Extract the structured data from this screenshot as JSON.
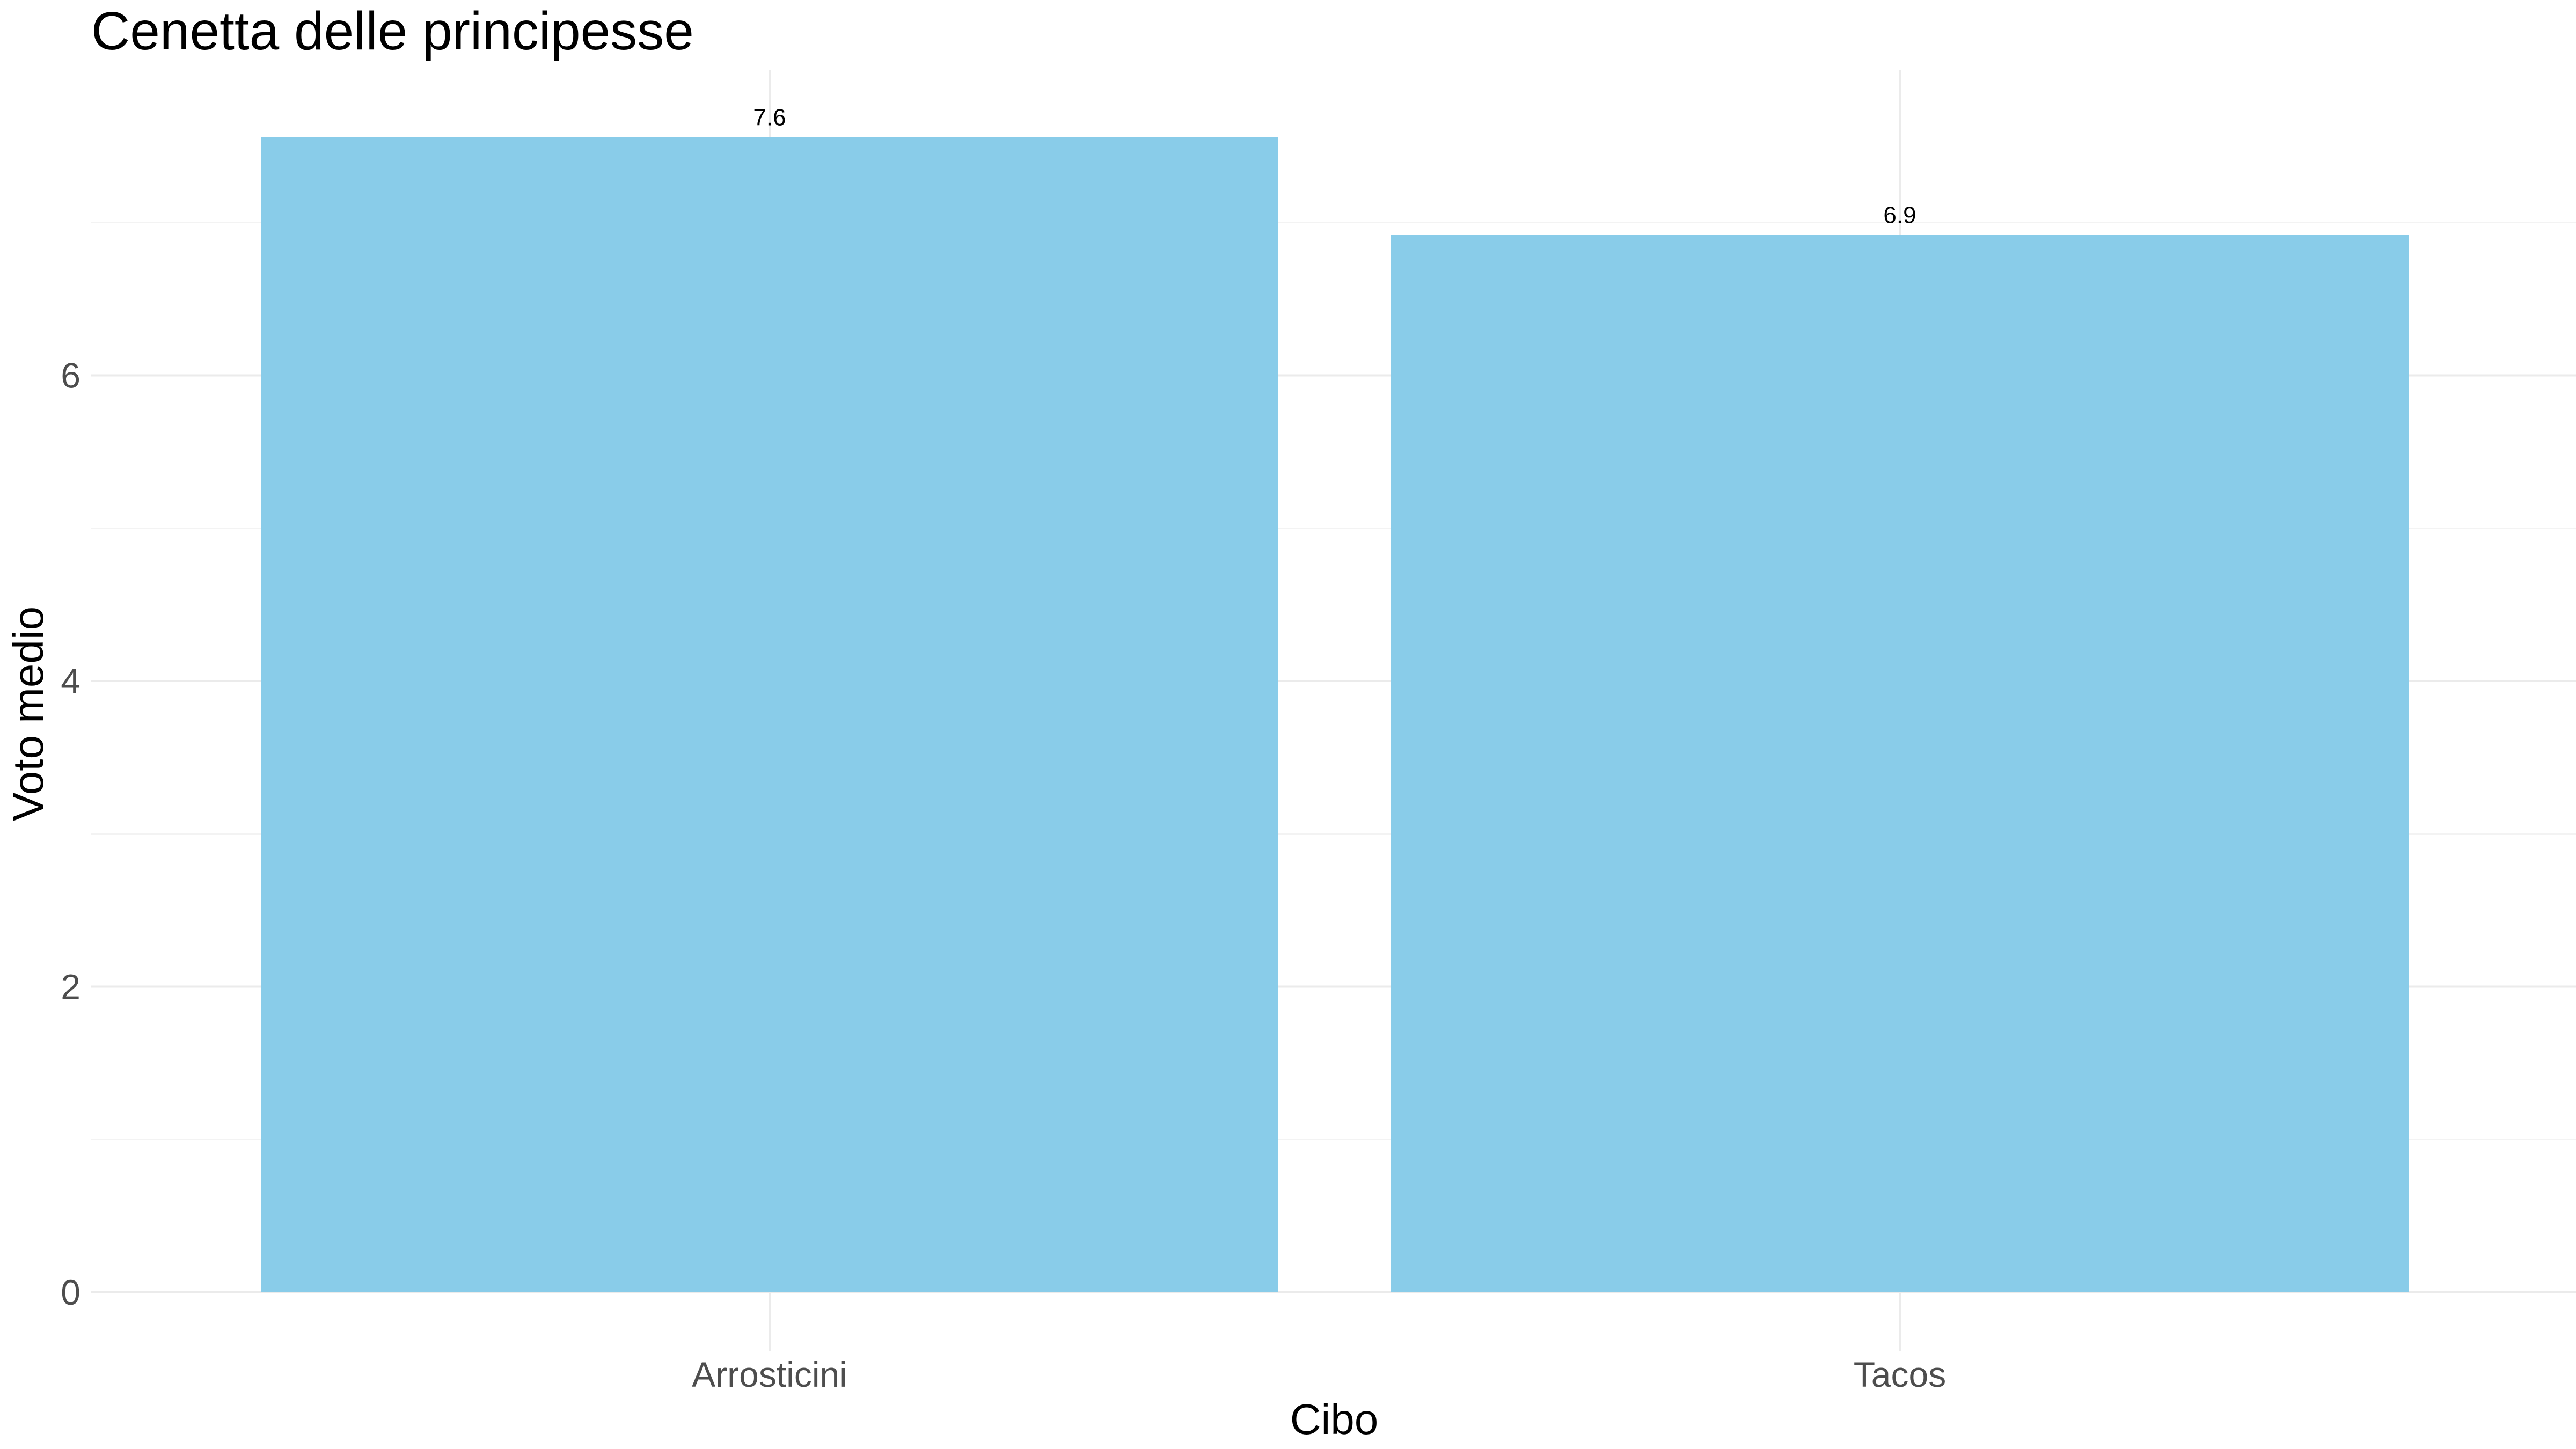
{
  "chart_data": {
    "type": "bar",
    "title": "Cenetta delle principesse",
    "xlabel": "Cibo",
    "ylabel": "Voto medio",
    "categories": [
      "Arrosticini",
      "Tacos"
    ],
    "values": [
      7.56,
      6.92
    ],
    "data_labels": [
      "7.6",
      "6.9"
    ],
    "ylim": [
      0,
      8
    ],
    "y_ticks": [
      0,
      2,
      4,
      6
    ],
    "y_tick_labels": [
      "0",
      "2",
      "4",
      "6"
    ],
    "bar_color": "#89CCE9",
    "grid": true,
    "legend": "none"
  }
}
